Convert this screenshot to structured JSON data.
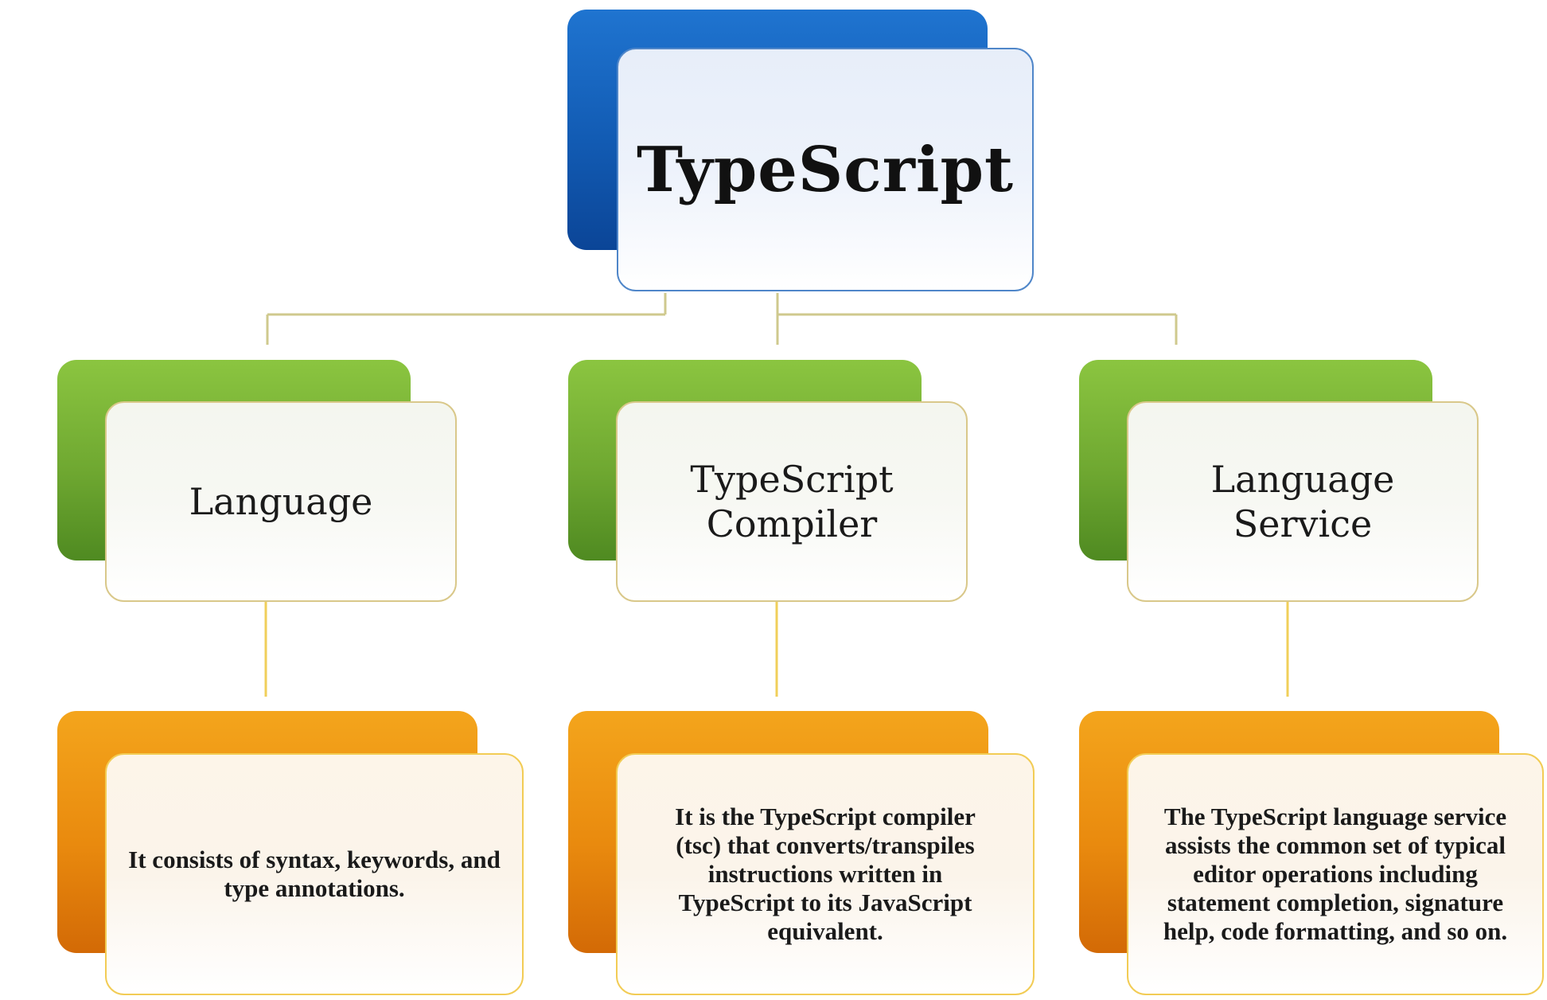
{
  "root": {
    "label": "TypeScript"
  },
  "components": [
    {
      "label": "Language",
      "description": "It consists of syntax, keywords, and type annotations."
    },
    {
      "label": "TypeScript Compiler",
      "description": "It is the TypeScript compiler (tsc) that converts/transpiles instructions written in TypeScript to its JavaScript equivalent."
    },
    {
      "label": "Language Service",
      "description": "The TypeScript language service assists the common set of typical editor operations including statement completion, signature help, code formatting, and so on."
    }
  ],
  "colors": {
    "root": "#125bb3",
    "component": "#6fa831",
    "description": "#e98a0e",
    "connector": "#c9c98a"
  }
}
